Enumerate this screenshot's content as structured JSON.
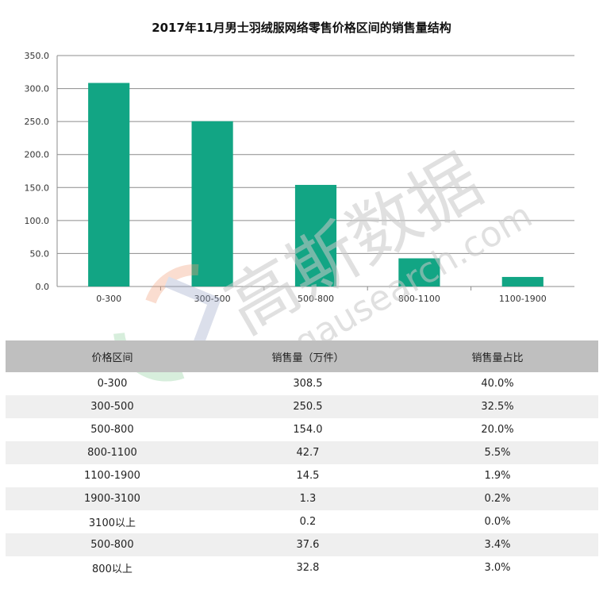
{
  "chart_data": {
    "type": "bar",
    "title": "2017年11月男士羽绒服网络零售价格区间的销售量结构",
    "categories": [
      "0-300",
      "300-500",
      "500-800",
      "800-1100",
      "1100-1900"
    ],
    "values": [
      308.5,
      250.5,
      154.0,
      42.7,
      14.5
    ],
    "ylim": [
      0,
      350
    ],
    "yticks": [
      "0.0",
      "50.0",
      "100.0",
      "150.0",
      "200.0",
      "250.0",
      "300.0",
      "350.0"
    ],
    "grid": true,
    "bar_color": "#12a584"
  },
  "table": {
    "headers": [
      "价格区间",
      "销售量（万件）",
      "销售量占比"
    ],
    "rows": [
      [
        "0-300",
        "308.5",
        "40.0%"
      ],
      [
        "300-500",
        "250.5",
        "32.5%"
      ],
      [
        "500-800",
        "154.0",
        "20.0%"
      ],
      [
        "800-1100",
        "42.7",
        "5.5%"
      ],
      [
        "1100-1900",
        "14.5",
        "1.9%"
      ],
      [
        "1900-3100",
        "1.3",
        "0.2%"
      ],
      [
        "3100以上",
        "0.2",
        "0.0%"
      ],
      [
        "500-800",
        "37.6",
        "3.4%"
      ],
      [
        "800以上",
        "32.8",
        "3.0%"
      ]
    ]
  },
  "watermark": {
    "name": "高斯数据",
    "url": "gausearch.com"
  }
}
